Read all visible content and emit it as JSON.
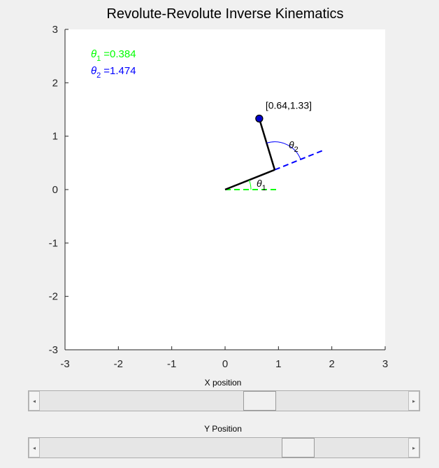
{
  "window": {
    "title": "Revolute-Revolute Inverse Kinematics"
  },
  "colors": {
    "link": "#000000",
    "theta1": "#00ff00",
    "theta2": "#0000ff",
    "joint": "#0000cc",
    "plot_bg": "#ffffff",
    "figure_bg": "#f0f0f0"
  },
  "chart_data": {
    "type": "scatter",
    "title": "Revolute-Revolute Inverse Kinematics",
    "xlim": [
      -3,
      3
    ],
    "ylim": [
      -3,
      3
    ],
    "xticks": [
      "-3",
      "-2",
      "-1",
      "0",
      "1",
      "2",
      "3"
    ],
    "yticks": [
      "-3",
      "-2",
      "-1",
      "0",
      "1",
      "2",
      "3"
    ],
    "links": [
      {
        "name": "link1",
        "from": [
          0,
          0
        ],
        "to": [
          0.93,
          0.37
        ]
      },
      {
        "name": "link2",
        "from": [
          0.93,
          0.37
        ],
        "to": [
          0.64,
          1.33
        ]
      }
    ],
    "end_effector": {
      "x": 0.64,
      "y": 1.33,
      "label": "[0.64,1.33]"
    },
    "theta1_ref_line": {
      "from": [
        0,
        0
      ],
      "to": [
        1.0,
        0
      ]
    },
    "theta2_ref_line": {
      "from": [
        0.93,
        0.37
      ],
      "to": [
        1.85,
        0.74
      ]
    },
    "angle_labels": {
      "theta1": "θ",
      "theta1_sub": "1",
      "theta2": "θ",
      "theta2_sub": "2"
    },
    "legend": {
      "theta1_symbol": "θ",
      "theta1_sub": "1",
      "theta1_value": "=0.384",
      "theta2_symbol": "θ",
      "theta2_sub": "2",
      "theta2_value": "=1.474"
    }
  },
  "sliders": {
    "x": {
      "label": "X position",
      "value": 0.64,
      "min": -3,
      "max": 3
    },
    "y": {
      "label": "Y Position",
      "value": 1.33,
      "min": -3,
      "max": 3
    }
  },
  "icons": {
    "left_arrow": "◂",
    "right_arrow": "▸"
  }
}
